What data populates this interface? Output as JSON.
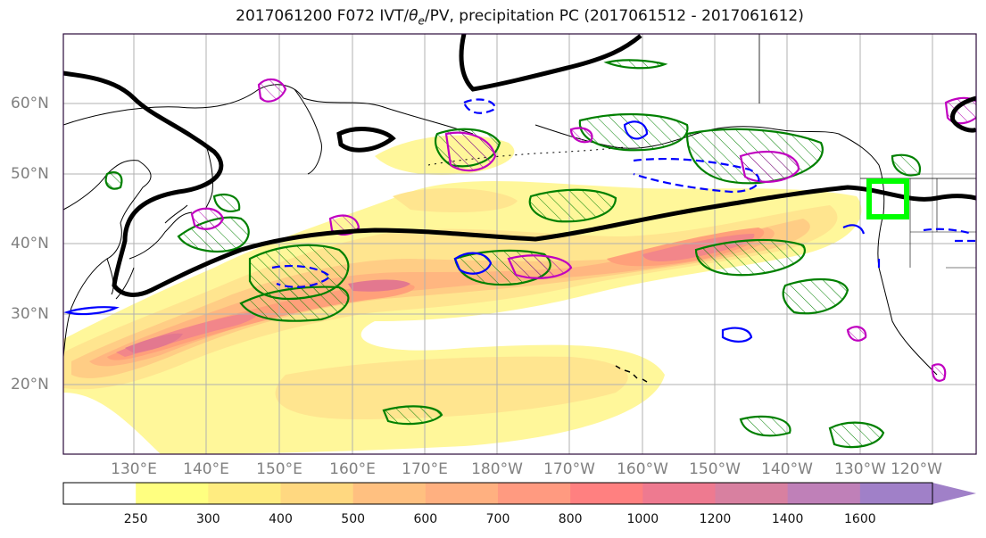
{
  "title": "2017061200 F072 IVT/θe/PV, precipitation PC (2017061512 - 2017061612)",
  "map": {
    "lat_labels": [
      "60°N",
      "50°N",
      "40°N",
      "30°N",
      "20°N"
    ],
    "lon_labels": [
      "130°E",
      "140°E",
      "150°E",
      "160°E",
      "170°E",
      "180°W",
      "170°W",
      "160°W",
      "150°W",
      "140°W",
      "130°W",
      "120°W"
    ],
    "colors": {
      "coast": "#000000",
      "jet_contour": "#000000",
      "theta_e": "#008000",
      "pv_positive": "#c000c0",
      "pv_negative": "#0000ff",
      "target_box": "#00ff00",
      "grid": "#b0b0b0",
      "frame": "#2b0b3b"
    }
  },
  "colorbar": {
    "levels": [
      "250",
      "300",
      "400",
      "500",
      "600",
      "700",
      "800",
      "1000",
      "1200",
      "1400",
      "1600"
    ],
    "colors": [
      "#ffffff",
      "#ffff80",
      "#ffec80",
      "#ffd880",
      "#ffc080",
      "#ffb080",
      "#ff9a80",
      "#ff8080",
      "#ee7a90",
      "#d880a0",
      "#bf80b8",
      "#a080c8"
    ]
  }
}
